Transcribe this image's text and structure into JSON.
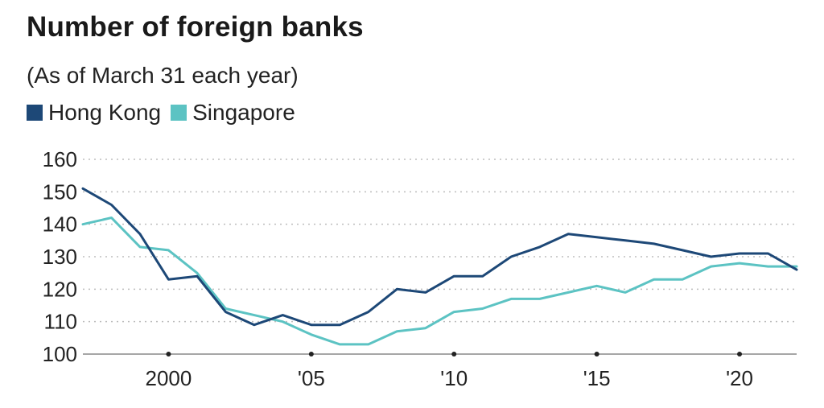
{
  "header": {
    "title": "Number of foreign banks",
    "subtitle": "(As of March 31 each year)"
  },
  "legend": [
    {
      "label": "Hong Kong",
      "color": "#1d4877"
    },
    {
      "label": "Singapore",
      "color": "#5cc3c3"
    }
  ],
  "chart_data": {
    "type": "line",
    "title": "Number of foreign banks",
    "subtitle": "(As of March 31 each year)",
    "xlabel": "",
    "ylabel": "",
    "xlim": [
      1997,
      2022
    ],
    "ylim": [
      100,
      160
    ],
    "yticks": [
      100,
      110,
      120,
      130,
      140,
      150,
      160
    ],
    "xticks": [
      {
        "value": 2000,
        "label": "2000"
      },
      {
        "value": 2005,
        "label": "'05"
      },
      {
        "value": 2010,
        "label": "'10"
      },
      {
        "value": 2015,
        "label": "'15"
      },
      {
        "value": 2020,
        "label": "'20"
      }
    ],
    "grid": true,
    "legend_position": "top-left",
    "x": [
      1997,
      1998,
      1999,
      2000,
      2001,
      2002,
      2003,
      2004,
      2005,
      2006,
      2007,
      2008,
      2009,
      2010,
      2011,
      2012,
      2013,
      2014,
      2015,
      2016,
      2017,
      2018,
      2019,
      2020,
      2021,
      2022
    ],
    "series": [
      {
        "name": "Hong Kong",
        "color": "#1d4877",
        "values": [
          151,
          146,
          137,
          123,
          124,
          113,
          109,
          112,
          109,
          109,
          113,
          120,
          119,
          124,
          124,
          130,
          133,
          137,
          136,
          135,
          134,
          132,
          130,
          131,
          131,
          126
        ]
      },
      {
        "name": "Singapore",
        "color": "#5cc3c3",
        "values": [
          140,
          142,
          133,
          132,
          125,
          114,
          112,
          110,
          106,
          103,
          103,
          107,
          108,
          113,
          114,
          117,
          117,
          119,
          121,
          119,
          123,
          123,
          127,
          128,
          127,
          127
        ]
      }
    ]
  }
}
